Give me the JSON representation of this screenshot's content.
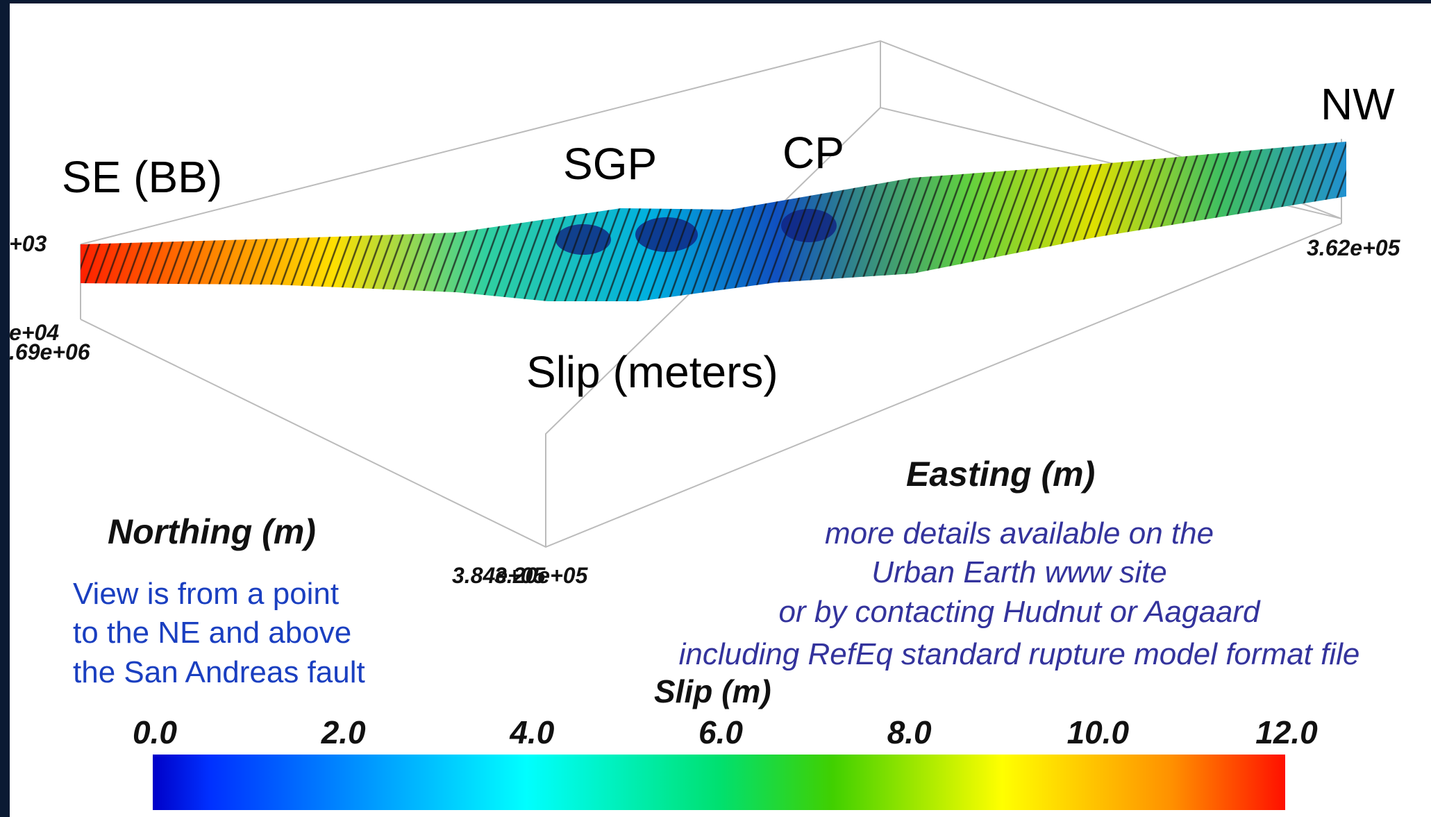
{
  "labels": {
    "se": "SE (BB)",
    "sgp": "SGP",
    "cp": "CP",
    "nw": "NW",
    "title": "Slip (meters)"
  },
  "axes": {
    "easting": "Easting (m)",
    "northing": "Northing (m)",
    "ticks": [
      "+03",
      "e+04",
      ".69e+06",
      "3.62e+05",
      "3.84e+05",
      "3.20e+05"
    ]
  },
  "view_note": [
    "View is from a point",
    "to the NE and above",
    "the San Andreas fault"
  ],
  "details_note": [
    "more details available on the",
    "Urban Earth www site",
    "or by contacting Hudnut or Aagaard",
    "including RefEq standard rupture model format file"
  ],
  "colorbar": {
    "title": "Slip (m)",
    "ticks": [
      "0.0",
      "2.0",
      "4.0",
      "6.0",
      "8.0",
      "10.0",
      "12.0"
    ]
  }
}
